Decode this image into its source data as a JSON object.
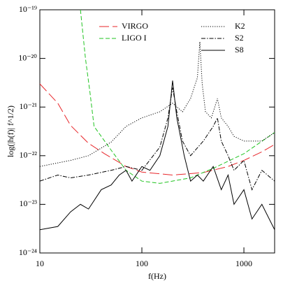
{
  "chart_data": {
    "type": "line",
    "xlabel": "f(Hz)",
    "ylabel": "log(|h(f)| f^1/2)",
    "log_x": true,
    "log_y": true,
    "xlim": [
      10,
      2000
    ],
    "xticks": [
      10,
      100,
      1000
    ],
    "ylim": [
      1e-24,
      1e-19
    ],
    "yticks": [
      {
        "value": 1e-24,
        "label": "10⁻²⁴"
      },
      {
        "value": 1e-23,
        "label": "10⁻²³"
      },
      {
        "value": 1e-22,
        "label": "10⁻²²"
      },
      {
        "value": 1e-21,
        "label": "10⁻²¹"
      },
      {
        "value": 1e-20,
        "label": "10⁻²⁰"
      },
      {
        "value": 1e-19,
        "label": "10⁻¹⁹"
      }
    ],
    "series": [
      {
        "name": "VIRGO",
        "color": "#e8262a",
        "style": "long-dash",
        "x": [
          10,
          15,
          20,
          30,
          43,
          70,
          100,
          200,
          400,
          700,
          1000,
          1500,
          2000
        ],
        "values": [
          3e-21,
          1.2e-21,
          4.2e-22,
          1.8e-22,
          1.1e-22,
          6e-23,
          4.6e-23,
          4e-23,
          4.5e-23,
          6e-23,
          8e-23,
          1.2e-22,
          1.7e-22
        ]
      },
      {
        "name": "LIGO I",
        "color": "#22c422",
        "style": "dashed",
        "x": [
          25,
          28,
          31,
          34,
          50,
          70,
          100,
          150,
          300,
          500,
          1000,
          2000
        ],
        "values": [
          1e-19,
          1e-20,
          2e-21,
          4e-22,
          1.3e-22,
          5e-23,
          3e-23,
          2.7e-23,
          3.5e-23,
          5.5e-23,
          1.1e-22,
          3e-22
        ]
      },
      {
        "name": "K2",
        "color": "#000000",
        "style": "dotted",
        "x": [
          10,
          20,
          30,
          50,
          70,
          100,
          150,
          200,
          250,
          300,
          350,
          370,
          390,
          420,
          480,
          550,
          600,
          700,
          800,
          1000,
          1500,
          2000
        ],
        "values": [
          6e-23,
          8e-23,
          1e-22,
          1.9e-22,
          4e-22,
          6e-22,
          8e-22,
          1.2e-21,
          8e-22,
          1.5e-21,
          4e-21,
          2.2e-20,
          3e-21,
          8e-22,
          6e-22,
          1.5e-21,
          6e-22,
          4e-22,
          2.5e-22,
          2e-22,
          2e-22,
          3e-22
        ]
      },
      {
        "name": "S2",
        "color": "#000000",
        "style": "dash-dot",
        "x": [
          10,
          15,
          20,
          30,
          50,
          70,
          100,
          150,
          180,
          200,
          220,
          250,
          300,
          400,
          500,
          550,
          600,
          700,
          800,
          1000,
          1200,
          1500,
          2000
        ],
        "values": [
          3e-23,
          4e-23,
          3.5e-23,
          4e-23,
          5e-23,
          6e-23,
          5e-23,
          1.5e-22,
          6e-22,
          2.5e-21,
          8e-22,
          2e-22,
          1e-22,
          2e-22,
          4e-22,
          6e-22,
          2e-22,
          1e-22,
          5e-23,
          8e-23,
          2e-23,
          5e-23,
          3e-23
        ]
      },
      {
        "name": "S8",
        "color": "#000000",
        "style": "solid",
        "x": [
          10,
          15,
          20,
          25,
          30,
          40,
          50,
          60,
          70,
          80,
          100,
          120,
          150,
          180,
          200,
          220,
          260,
          300,
          350,
          400,
          500,
          600,
          700,
          800,
          1000,
          1200,
          1500,
          2000
        ],
        "values": [
          3e-24,
          3.5e-24,
          7e-24,
          1e-23,
          8e-24,
          2e-23,
          2.5e-23,
          4e-23,
          5e-23,
          3e-23,
          6e-23,
          5e-23,
          1e-22,
          4e-22,
          3.5e-21,
          6e-22,
          1e-22,
          3e-23,
          4e-23,
          3e-23,
          6e-23,
          2e-23,
          4e-23,
          1e-23,
          2e-23,
          5e-24,
          1e-23,
          3e-24
        ]
      }
    ]
  }
}
